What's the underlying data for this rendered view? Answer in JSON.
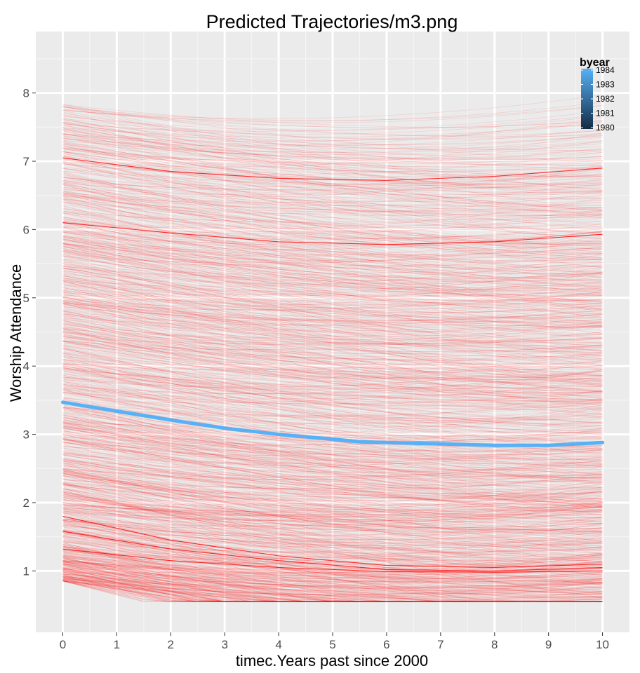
{
  "chart_data": {
    "type": "line",
    "title": "Predicted Trajectories/m3.png",
    "xlabel": "timec.Years past since 2000",
    "ylabel": "Worship Attendance",
    "xlim": [
      -0.5,
      10.5
    ],
    "ylim": [
      0.1,
      8.9
    ],
    "x_ticks": [
      0,
      1,
      2,
      3,
      4,
      5,
      6,
      7,
      8,
      9,
      10
    ],
    "y_ticks": [
      1,
      2,
      3,
      4,
      5,
      6,
      7,
      8
    ],
    "background": "#ebebeb",
    "grid": true,
    "individual_trajectories": {
      "color": "#ff0000",
      "description_count_approx": 1200,
      "highlighted_examples": [
        {
          "x": [
            0,
            2,
            4,
            6,
            8,
            10
          ],
          "values": [
            7.05,
            6.85,
            6.75,
            6.72,
            6.78,
            6.9
          ]
        },
        {
          "x": [
            0,
            2,
            4,
            6,
            8,
            10
          ],
          "values": [
            6.1,
            5.95,
            5.82,
            5.78,
            5.82,
            5.93
          ]
        },
        {
          "x": [
            0,
            2,
            4,
            6,
            8,
            10
          ],
          "values": [
            1.8,
            1.45,
            1.22,
            1.08,
            1.05,
            1.1
          ]
        },
        {
          "x": [
            0,
            2,
            4,
            6,
            8,
            10
          ],
          "values": [
            1.58,
            1.32,
            1.15,
            1.02,
            1.0,
            1.05
          ]
        },
        {
          "x": [
            0,
            2,
            4,
            6,
            8,
            10
          ],
          "values": [
            1.32,
            1.15,
            1.05,
            0.99,
            0.98,
            1.0
          ]
        }
      ]
    },
    "series": [
      {
        "color": "#56b1f7",
        "x": [
          0,
          1,
          2,
          3,
          4,
          5,
          5.5,
          6,
          7,
          8,
          9,
          10
        ],
        "values": [
          3.47,
          3.34,
          3.21,
          3.09,
          3.0,
          2.93,
          2.89,
          2.88,
          2.86,
          2.84,
          2.84,
          2.88
        ]
      }
    ],
    "legend": {
      "title": "byear",
      "position": "top-right",
      "type": "colorbar",
      "labels": [
        "1984",
        "1983",
        "1982",
        "1981",
        "1980"
      ],
      "range": [
        1980,
        1984
      ],
      "color_low": "#132b43",
      "color_high": "#56b1f7"
    }
  }
}
